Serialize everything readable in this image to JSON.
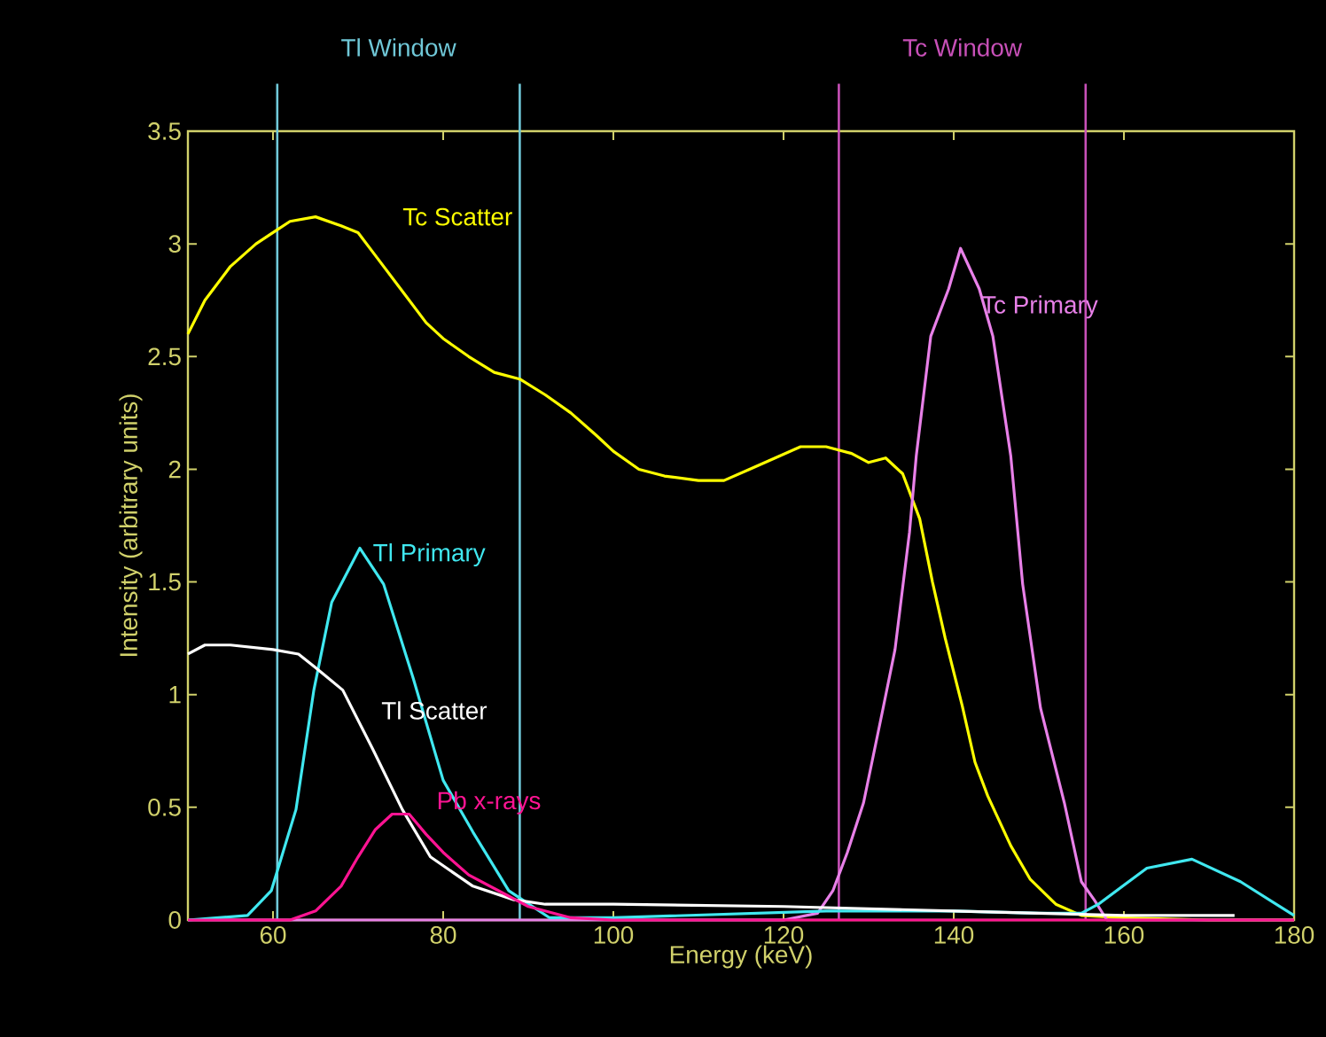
{
  "chart_data": {
    "type": "line",
    "xlabel": "Energy (keV)",
    "ylabel": "Intensity (arbitrary units)",
    "xlim": [
      50,
      180
    ],
    "xticks": [
      60,
      80,
      100,
      120,
      140,
      160,
      180
    ],
    "ylim": [
      0,
      3.5
    ],
    "yticks": [
      0,
      0.5,
      1,
      1.5,
      2,
      2.5,
      3,
      3.5
    ],
    "series": [
      {
        "name": "Tc Scatter",
        "color": "#ffff00",
        "x": [
          50,
          52,
          55,
          58,
          60,
          62,
          65,
          68,
          70,
          72,
          75,
          78,
          80,
          83,
          86,
          89,
          92,
          95,
          98,
          100,
          103,
          106,
          110,
          113,
          116,
          119,
          122,
          125,
          128,
          130,
          132,
          134,
          136,
          137.5,
          139,
          141,
          142.5,
          144,
          146.7,
          149,
          152,
          155,
          160,
          170,
          180
        ],
        "values": [
          2.6,
          2.75,
          2.9,
          3.0,
          3.05,
          3.1,
          3.12,
          3.08,
          3.05,
          2.95,
          2.8,
          2.65,
          2.58,
          2.5,
          2.43,
          2.4,
          2.33,
          2.25,
          2.15,
          2.08,
          2.0,
          1.97,
          1.95,
          1.95,
          2.0,
          2.05,
          2.1,
          2.1,
          2.07,
          2.03,
          2.05,
          1.98,
          1.78,
          1.5,
          1.25,
          0.95,
          0.7,
          0.55,
          0.33,
          0.18,
          0.07,
          0.02,
          0.01,
          0,
          0
        ]
      },
      {
        "name": "Tc Primary",
        "color": "#e880e8",
        "x": [
          50,
          120,
          124,
          125.8,
          127.5,
          129.4,
          131.7,
          133.1,
          134.8,
          135.6,
          137.3,
          139.4,
          140.8,
          143,
          144.6,
          146.7,
          148.1,
          150.2,
          153,
          155,
          156.5,
          158,
          180
        ],
        "values": [
          0,
          0,
          0.03,
          0.13,
          0.3,
          0.52,
          0.94,
          1.2,
          1.72,
          2.06,
          2.59,
          2.8,
          2.98,
          2.8,
          2.59,
          2.06,
          1.49,
          0.94,
          0.52,
          0.17,
          0.09,
          0,
          0
        ]
      },
      {
        "name": "Tl Primary",
        "color": "#40e8f0",
        "x": [
          50,
          57,
          59.8,
          62.7,
          64.8,
          66.9,
          70.2,
          73,
          76.5,
          80,
          83.5,
          87.7,
          92.5,
          100,
          125,
          140,
          150,
          155,
          157,
          162.7,
          168,
          173.7,
          180
        ],
        "values": [
          0,
          0.02,
          0.13,
          0.49,
          1.02,
          1.41,
          1.65,
          1.49,
          1.07,
          0.62,
          0.39,
          0.13,
          0.01,
          0.01,
          0.04,
          0.04,
          0.03,
          0.03,
          0.07,
          0.23,
          0.27,
          0.17,
          0.02
        ]
      },
      {
        "name": "Tl Scatter",
        "color": "#ffffff",
        "x": [
          50,
          52,
          55,
          60,
          63,
          65,
          68.2,
          71.7,
          75.2,
          78.5,
          83.5,
          88.3,
          92,
          100,
          120,
          140,
          150,
          160,
          173
        ],
        "values": [
          1.18,
          1.22,
          1.22,
          1.2,
          1.18,
          1.12,
          1.02,
          0.76,
          0.49,
          0.28,
          0.15,
          0.09,
          0.07,
          0.07,
          0.06,
          0.04,
          0.03,
          0.02,
          0.02
        ]
      },
      {
        "name": "Pb x-rays",
        "color": "#ff1493",
        "x": [
          50,
          62,
          65,
          68,
          70,
          72,
          74,
          76,
          78,
          80,
          83,
          87,
          90,
          95,
          100,
          180
        ],
        "values": [
          0,
          0,
          0.04,
          0.15,
          0.28,
          0.4,
          0.47,
          0.47,
          0.38,
          0.3,
          0.2,
          0.12,
          0.06,
          0.01,
          0,
          0
        ]
      }
    ],
    "ref_lines": [
      {
        "axis": "x",
        "value": 60.5,
        "label": "Tl Window",
        "color": "#70c8d8"
      },
      {
        "axis": "x",
        "value": 89,
        "color": "#70c8d8"
      },
      {
        "axis": "x",
        "value": 126.5,
        "label": "Tc Window",
        "color": "#c850b8"
      },
      {
        "axis": "x",
        "value": 155.5,
        "color": "#c850b8"
      }
    ]
  }
}
